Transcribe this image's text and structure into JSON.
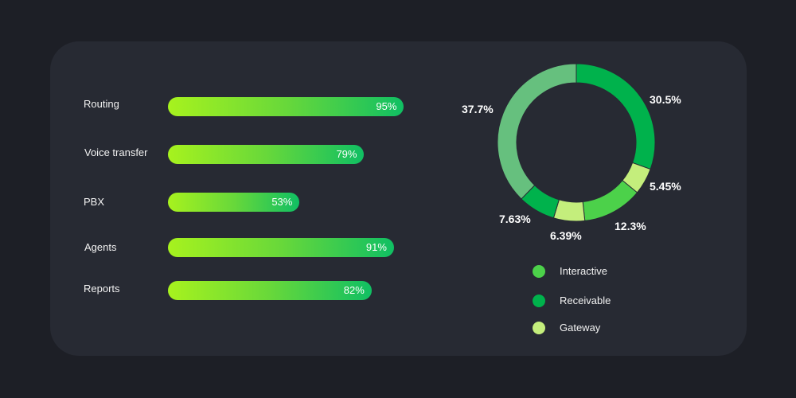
{
  "colors": {
    "interactive": "#4cd14a",
    "receivable": "#00b24c",
    "gateway": "#c4ee7c",
    "large_slice": "#66c07e"
  },
  "chart_data": [
    {
      "type": "bar",
      "orientation": "horizontal",
      "categories": [
        "Routing",
        "Voice transfer",
        "PBX",
        "Agents",
        "Reports"
      ],
      "values": [
        95,
        79,
        53,
        91,
        82
      ],
      "value_labels": [
        "95%",
        "79%",
        "53%",
        "91%",
        "82%"
      ],
      "xlim": [
        0,
        100
      ]
    },
    {
      "type": "pie",
      "donut": true,
      "slices": [
        {
          "value": 30.5,
          "label": "30.5%",
          "color": "#00b24c"
        },
        {
          "value": 5.45,
          "label": "5.45%",
          "color": "#c4ee7c"
        },
        {
          "value": 12.3,
          "label": "12.3%",
          "color": "#4cd14a"
        },
        {
          "value": 6.39,
          "label": "6.39%",
          "color": "#c4ee7c"
        },
        {
          "value": 7.63,
          "label": "7.63%",
          "color": "#00b24c"
        },
        {
          "value": 37.7,
          "label": "37.7%",
          "color": "#66c07e"
        }
      ],
      "legend": [
        {
          "label": "Interactive",
          "color": "#4cd14a"
        },
        {
          "label": "Receivable",
          "color": "#00b24c"
        },
        {
          "label": "Gateway",
          "color": "#c4ee7c"
        }
      ],
      "legend_position": "bottom"
    }
  ]
}
